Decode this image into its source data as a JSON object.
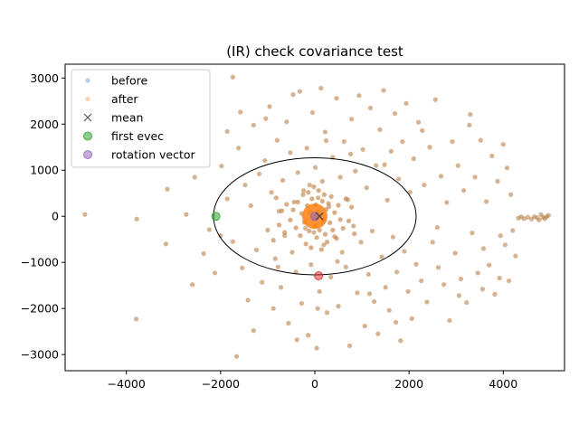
{
  "chart_data": {
    "type": "scatter",
    "title": "(IR) check covariance test",
    "xlabel": "",
    "ylabel": "",
    "xlim": [
      -5300,
      5300
    ],
    "ylim": [
      -3350,
      3300
    ],
    "xticks": [
      -4000,
      -2000,
      0,
      2000,
      4000
    ],
    "yticks": [
      -3000,
      -2000,
      -1000,
      0,
      1000,
      2000,
      3000
    ],
    "xtick_labels": [
      "−4000",
      "−2000",
      "0",
      "2000",
      "4000"
    ],
    "ytick_labels": [
      "−3000",
      "−2000",
      "−1000",
      "0",
      "1000",
      "2000",
      "3000"
    ],
    "grid": false,
    "legend_position": "top-left",
    "legend": [
      {
        "label": "before",
        "marker": "dot",
        "color": "#1f77b4"
      },
      {
        "label": "after",
        "marker": "dot",
        "color": "#ff7f0e"
      },
      {
        "label": "mean",
        "marker": "x",
        "color": "#555555"
      },
      {
        "label": "first evec",
        "marker": "circle",
        "color": "#2ca02c"
      },
      {
        "label": "rotation vector",
        "marker": "circle",
        "color": "#9467bd"
      }
    ],
    "colors": {
      "before": "#1f77b4",
      "after": "#ff7f0e",
      "overlap": "#c8906a",
      "evec": "#2ca02c",
      "rotation": "#9467bd",
      "second_evec": "#d62728"
    },
    "mean": {
      "x": 100,
      "y": 0
    },
    "ellipse": {
      "cx": 0,
      "cy": 0,
      "rx": 2150,
      "ry": 1270
    },
    "first_evec": {
      "x": -2100,
      "y": 0
    },
    "second_evec": {
      "x": 80,
      "y": -1290
    },
    "rotation_vector": {
      "x": 0,
      "y": 0
    },
    "points": [
      [
        -4880,
        40
      ],
      [
        -3780,
        -60
      ],
      [
        -3790,
        -2230
      ],
      [
        -3160,
        -600
      ],
      [
        -3130,
        590
      ],
      [
        -2730,
        40
      ],
      [
        -2550,
        850
      ],
      [
        -2360,
        -810
      ],
      [
        -2240,
        -290
      ],
      [
        -2120,
        -1230
      ],
      [
        -1740,
        3020
      ],
      [
        -1660,
        -3040
      ],
      [
        -1980,
        1090
      ],
      [
        -1860,
        380
      ],
      [
        -1740,
        -550
      ],
      [
        -1620,
        1480
      ],
      [
        -1540,
        -1120
      ],
      [
        -1480,
        680
      ],
      [
        -1420,
        -1820
      ],
      [
        -1360,
        230
      ],
      [
        -1300,
        1980
      ],
      [
        -1240,
        -730
      ],
      [
        -1180,
        920
      ],
      [
        -1120,
        -1430
      ],
      [
        -1060,
        1210
      ],
      [
        -1000,
        -300
      ],
      [
        -960,
        2380
      ],
      [
        -920,
        520
      ],
      [
        -880,
        -2000
      ],
      [
        -840,
        -920
      ],
      [
        -800,
        1650
      ],
      [
        -760,
        110
      ],
      [
        -720,
        -1540
      ],
      [
        -680,
        780
      ],
      [
        -640,
        -420
      ],
      [
        -600,
        2050
      ],
      [
        -560,
        -2320
      ],
      [
        -520,
        1380
      ],
      [
        -480,
        -780
      ],
      [
        -440,
        310
      ],
      [
        -400,
        -1210
      ],
      [
        -360,
        950
      ],
      [
        -320,
        2710
      ],
      [
        -280,
        -1890
      ],
      [
        -240,
        560
      ],
      [
        -200,
        -260
      ],
      [
        -170,
        1480
      ],
      [
        -140,
        -2580
      ],
      [
        -110,
        680
      ],
      [
        -80,
        -1050
      ],
      [
        -50,
        2250
      ],
      [
        -20,
        -350
      ],
      [
        10,
        1060
      ],
      [
        40,
        -2860
      ],
      [
        70,
        400
      ],
      [
        100,
        -1630
      ],
      [
        130,
        2780
      ],
      [
        160,
        760
      ],
      [
        190,
        -620
      ],
      [
        220,
        1830
      ],
      [
        260,
        -2090
      ],
      [
        300,
        210
      ],
      [
        340,
        -1320
      ],
      [
        380,
        1280
      ],
      [
        420,
        -440
      ],
      [
        460,
        2560
      ],
      [
        500,
        -1950
      ],
      [
        540,
        850
      ],
      [
        580,
        -780
      ],
      [
        620,
        1620
      ],
      [
        660,
        -1100
      ],
      [
        700,
        360
      ],
      [
        740,
        -2810
      ],
      [
        780,
        2110
      ],
      [
        820,
        -210
      ],
      [
        860,
        980
      ],
      [
        900,
        -1660
      ],
      [
        940,
        2620
      ],
      [
        980,
        -560
      ],
      [
        1020,
        1450
      ],
      [
        1060,
        -2380
      ],
      [
        1100,
        620
      ],
      [
        1140,
        -1260
      ],
      [
        1180,
        2350
      ],
      [
        1220,
        -320
      ],
      [
        1260,
        -1850
      ],
      [
        1300,
        1100
      ],
      [
        1340,
        -2550
      ],
      [
        1380,
        1880
      ],
      [
        1420,
        -880
      ],
      [
        1460,
        2730
      ],
      [
        1500,
        -1540
      ],
      [
        1540,
        350
      ],
      [
        1580,
        -2040
      ],
      [
        1620,
        1410
      ],
      [
        1660,
        -450
      ],
      [
        1700,
        2230
      ],
      [
        1740,
        -1210
      ],
      [
        1780,
        810
      ],
      [
        1820,
        -2700
      ],
      [
        1860,
        1620
      ],
      [
        1900,
        -760
      ],
      [
        1940,
        2450
      ],
      [
        1980,
        -1630
      ],
      [
        2020,
        520
      ],
      [
        2060,
        -2220
      ],
      [
        2100,
        1250
      ],
      [
        2150,
        -1040
      ],
      [
        2200,
        2040
      ],
      [
        2260,
        -1400
      ],
      [
        2320,
        680
      ],
      [
        2380,
        -1860
      ],
      [
        2440,
        1500
      ],
      [
        2500,
        -560
      ],
      [
        2560,
        2530
      ],
      [
        2620,
        -1110
      ],
      [
        2680,
        870
      ],
      [
        2740,
        -1480
      ],
      [
        2800,
        300
      ],
      [
        2860,
        -2260
      ],
      [
        2920,
        1620
      ],
      [
        2980,
        -800
      ],
      [
        3040,
        1100
      ],
      [
        3100,
        -1360
      ],
      [
        3160,
        560
      ],
      [
        3220,
        -1870
      ],
      [
        3280,
        1980
      ],
      [
        3340,
        -360
      ],
      [
        3400,
        850
      ],
      [
        3460,
        -1230
      ],
      [
        3520,
        1650
      ],
      [
        3580,
        -700
      ],
      [
        3640,
        320
      ],
      [
        3700,
        -1060
      ],
      [
        3760,
        1310
      ],
      [
        3820,
        -1690
      ],
      [
        3880,
        760
      ],
      [
        3940,
        -420
      ],
      [
        4000,
        1560
      ],
      [
        4040,
        -620
      ],
      [
        4080,
        1050
      ],
      [
        4120,
        -1400
      ],
      [
        4160,
        470
      ],
      [
        4200,
        -310
      ],
      [
        4260,
        -860
      ],
      [
        4320,
        -40
      ],
      [
        4380,
        -10
      ],
      [
        4440,
        -50
      ],
      [
        4520,
        -20
      ],
      [
        4600,
        -60
      ],
      [
        4660,
        -10
      ],
      [
        4720,
        -30
      ],
      [
        4760,
        -80
      ],
      [
        4800,
        40
      ],
      [
        4840,
        -20
      ],
      [
        4880,
        -50
      ],
      [
        4920,
        -10
      ],
      [
        4960,
        20
      ],
      [
        -2600,
        -1480
      ],
      [
        -2000,
        -420
      ],
      [
        -1860,
        1840
      ],
      [
        -1580,
        2260
      ],
      [
        -1300,
        -2480
      ],
      [
        -1040,
        2120
      ],
      [
        -780,
        -1100
      ],
      [
        -460,
        2640
      ],
      [
        -380,
        -2680
      ],
      [
        60,
        -2000
      ],
      [
        240,
        1640
      ],
      [
        480,
        -980
      ],
      [
        760,
        1350
      ],
      [
        1160,
        -1680
      ],
      [
        1480,
        1120
      ],
      [
        1720,
        -2300
      ],
      [
        2280,
        1860
      ],
      [
        2600,
        -240
      ],
      [
        3060,
        -1720
      ],
      [
        3300,
        2210
      ],
      [
        3560,
        -1580
      ],
      [
        3920,
        -1340
      ]
    ],
    "core_points": [
      [
        -520,
        -80
      ],
      [
        -460,
        140
      ],
      [
        -400,
        -250
      ],
      [
        -360,
        310
      ],
      [
        -310,
        -420
      ],
      [
        -280,
        60
      ],
      [
        -250,
        470
      ],
      [
        -220,
        -130
      ],
      [
        -190,
        -600
      ],
      [
        -160,
        230
      ],
      [
        -140,
        520
      ],
      [
        -120,
        -320
      ],
      [
        -100,
        90
      ],
      [
        -80,
        -680
      ],
      [
        -60,
        380
      ],
      [
        -40,
        -60
      ],
      [
        -20,
        640
      ],
      [
        0,
        -200
      ],
      [
        20,
        250
      ],
      [
        40,
        -460
      ],
      [
        60,
        100
      ],
      [
        80,
        560
      ],
      [
        100,
        -300
      ],
      [
        120,
        30
      ],
      [
        140,
        -720
      ],
      [
        160,
        330
      ],
      [
        180,
        -80
      ],
      [
        200,
        470
      ],
      [
        220,
        -390
      ],
      [
        240,
        150
      ],
      [
        260,
        -560
      ],
      [
        290,
        280
      ],
      [
        320,
        -140
      ],
      [
        350,
        430
      ],
      [
        380,
        -300
      ],
      [
        420,
        80
      ],
      [
        460,
        -480
      ],
      [
        500,
        240
      ],
      [
        540,
        -70
      ],
      [
        -600,
        260
      ],
      [
        -640,
        -350
      ],
      [
        -700,
        120
      ],
      [
        -760,
        -190
      ],
      [
        -820,
        400
      ],
      [
        -880,
        -520
      ],
      [
        600,
        -260
      ],
      [
        660,
        380
      ],
      [
        720,
        -100
      ],
      [
        780,
        200
      ],
      [
        840,
        -380
      ]
    ]
  }
}
